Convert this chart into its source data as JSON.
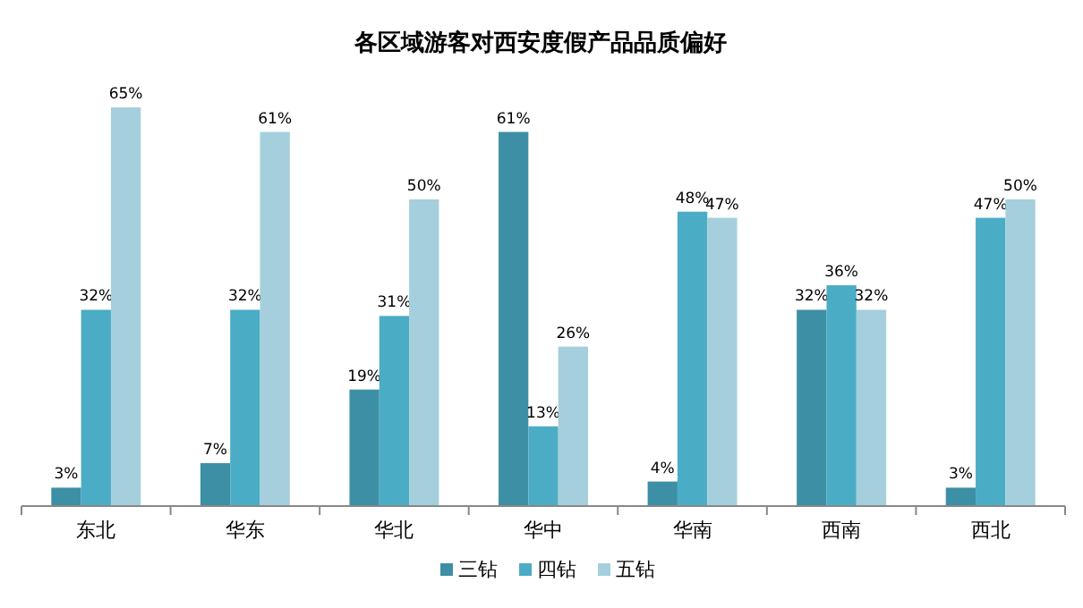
{
  "chart_data": {
    "type": "bar",
    "title": "各区域游客对西安度假产品品质偏好",
    "categories": [
      "东北",
      "华东",
      "华北",
      "华中",
      "华南",
      "西南",
      "西北"
    ],
    "series": [
      {
        "name": "三钻",
        "color": "#3d8fa5",
        "values": [
          3,
          7,
          19,
          61,
          4,
          32,
          3
        ],
        "value_labels": [
          "3%",
          "7%",
          "19%",
          "61%",
          "4%",
          "32%",
          "3%"
        ]
      },
      {
        "name": "四钻",
        "color": "#4bacc6",
        "values": [
          32,
          32,
          31,
          13,
          48,
          36,
          47
        ],
        "value_labels": [
          "32%",
          "32%",
          "31%",
          "13%",
          "48%",
          "36%",
          "47%"
        ]
      },
      {
        "name": "五钻",
        "color": "#a5cfdc",
        "values": [
          65,
          61,
          50,
          26,
          47,
          32,
          50
        ],
        "value_labels": [
          "65%",
          "61%",
          "50%",
          "26%",
          "47%",
          "32%",
          "50%"
        ]
      }
    ],
    "legend": "bottom"
  }
}
